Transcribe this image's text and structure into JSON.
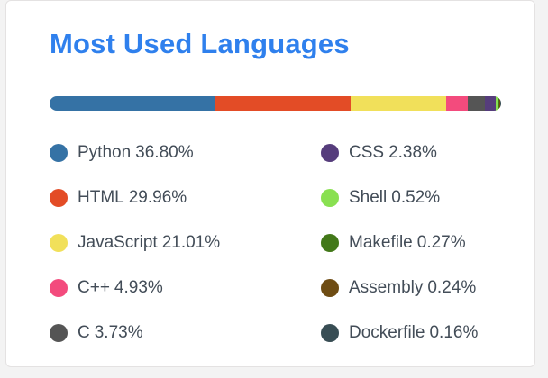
{
  "card": {
    "title": "Most Used Languages"
  },
  "chart_data": {
    "type": "bar",
    "stacked": true,
    "orientation": "horizontal",
    "title": "Most Used Languages",
    "unit": "%",
    "legend_placement": "bottom",
    "categories": [
      "Python",
      "HTML",
      "JavaScript",
      "C++",
      "C",
      "CSS",
      "Shell",
      "Makefile",
      "Assembly",
      "Dockerfile"
    ],
    "values": [
      36.8,
      29.96,
      21.01,
      4.93,
      3.73,
      2.38,
      0.52,
      0.27,
      0.24,
      0.16
    ],
    "labels": [
      "36.80%",
      "29.96%",
      "21.01%",
      "4.93%",
      "3.73%",
      "2.38%",
      "0.52%",
      "0.27%",
      "0.24%",
      "0.16%"
    ],
    "colors": [
      "#3572a5",
      "#e34c26",
      "#f1e05a",
      "#f34b7d",
      "#555555",
      "#563d7c",
      "#89e051",
      "#427819",
      "#6e4c13",
      "#384d54"
    ]
  }
}
